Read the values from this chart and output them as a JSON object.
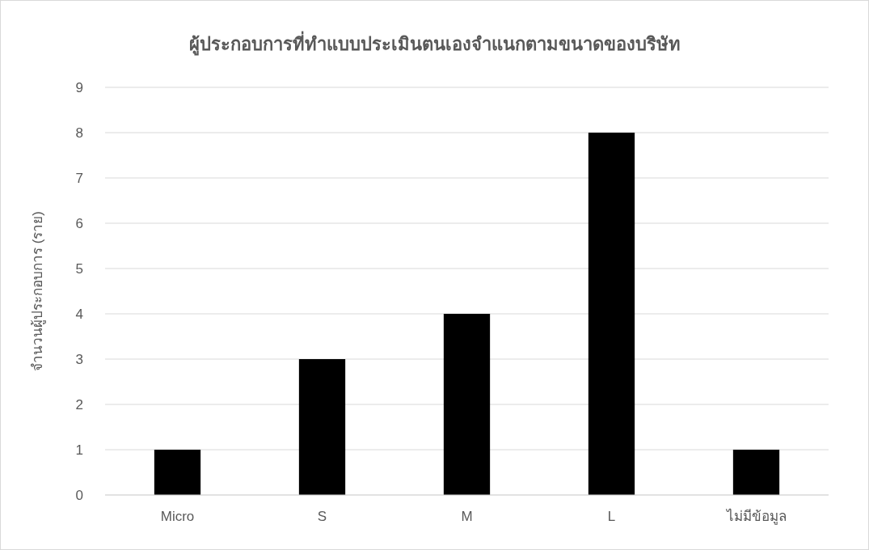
{
  "chart_data": {
    "type": "bar",
    "title": "ผู้ประกอบการที่ทำแบบประเมินตนเองจำแนกตามขนาดของบริษัท",
    "ylabel": "จำนวนผู้ประกอบการ (ราย)",
    "categories": [
      "Micro",
      "S",
      "M",
      "L",
      "ไม่มีข้อมูล"
    ],
    "values": [
      1,
      3,
      4,
      8,
      1
    ],
    "color": "#000000",
    "ylim": [
      0,
      9
    ],
    "yticks": [
      0,
      1,
      2,
      3,
      4,
      5,
      6,
      7,
      8,
      9
    ],
    "grid": "y"
  }
}
